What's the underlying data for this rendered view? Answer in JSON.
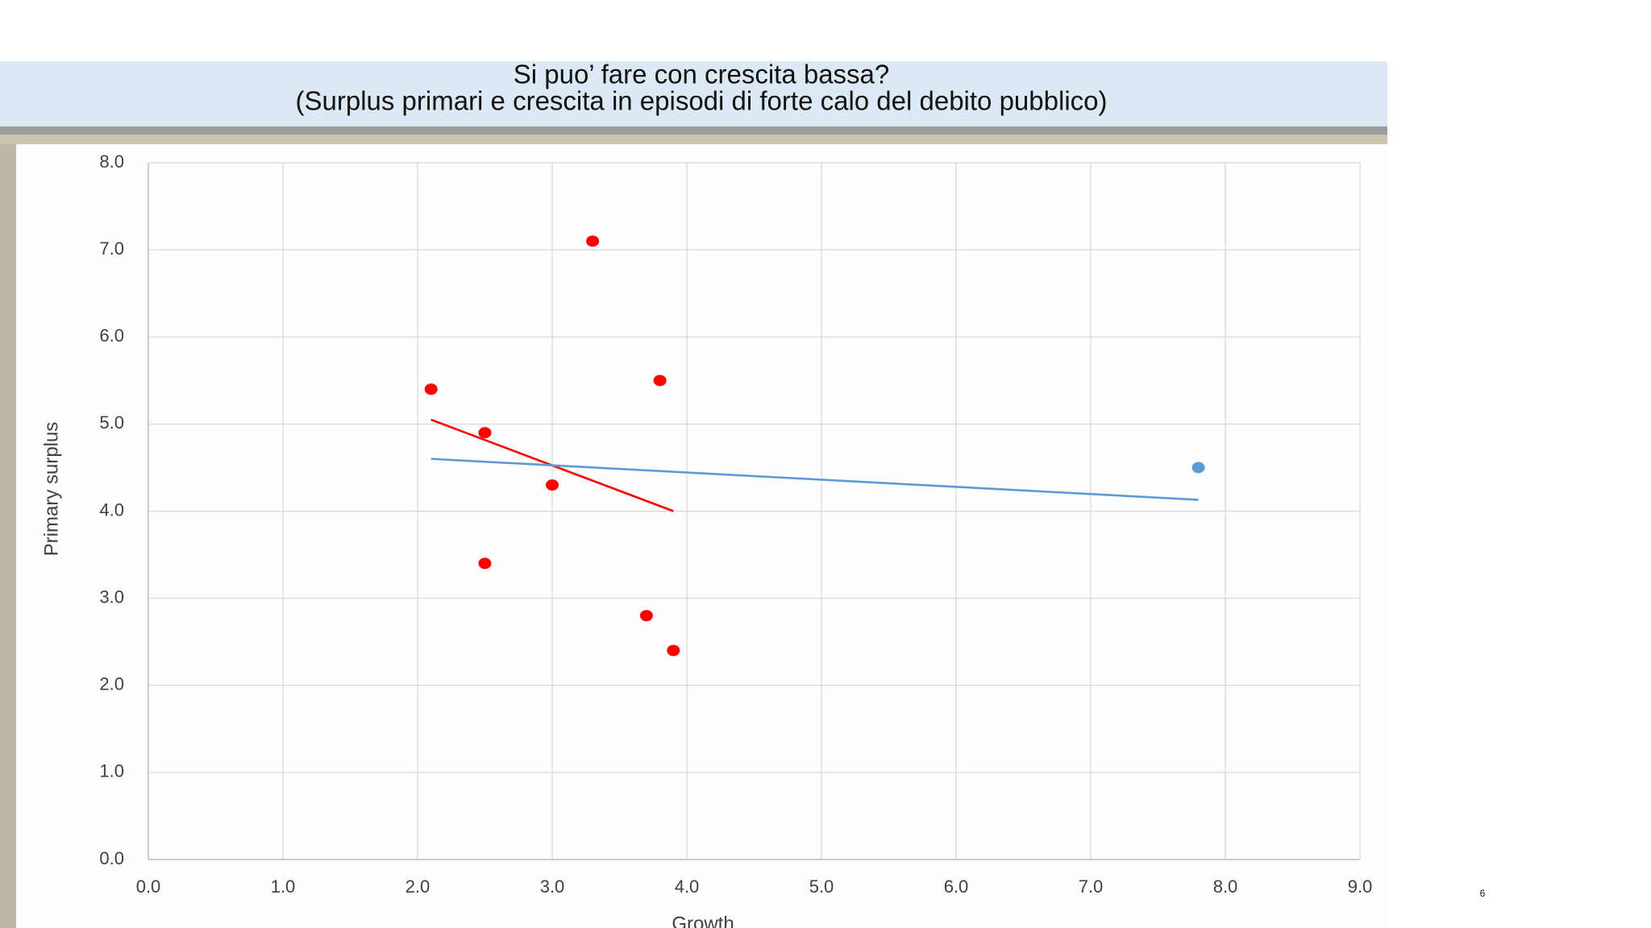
{
  "slide_title": [
    "Si puo’ fare con crescita bassa?",
    "(Surplus primari e crescita in episodi di forte calo del debito pubblico)"
  ],
  "page_number": "6",
  "chart_data": {
    "type": "scatter",
    "x_label": "Growth",
    "y_label": "Primary surplus",
    "xlim": [
      0,
      9
    ],
    "ylim": [
      0,
      8
    ],
    "xticks": [
      {
        "value": 0,
        "label": "0.0"
      },
      {
        "value": 1,
        "label": "1.0"
      },
      {
        "value": 2,
        "label": "2.0"
      },
      {
        "value": 3,
        "label": "3.0"
      },
      {
        "value": 4,
        "label": "4.0"
      },
      {
        "value": 5,
        "label": "5.0"
      },
      {
        "value": 6,
        "label": "6.0"
      },
      {
        "value": 7,
        "label": "7.0"
      },
      {
        "value": 8,
        "label": "8.0"
      },
      {
        "value": 9,
        "label": "9.0"
      }
    ],
    "yticks": [
      {
        "value": 0,
        "label": "0.0"
      },
      {
        "value": 1,
        "label": "1.0"
      },
      {
        "value": 2,
        "label": "2.0"
      },
      {
        "value": 3,
        "label": "3.0"
      },
      {
        "value": 4,
        "label": "4.0"
      },
      {
        "value": 5,
        "label": "5.0"
      },
      {
        "value": 6,
        "label": "6.0"
      },
      {
        "value": 7,
        "label": "7.0"
      },
      {
        "value": 8,
        "label": "8.0"
      }
    ],
    "grid": true,
    "series": [
      {
        "color": "#ff0000",
        "x": [
          2.1,
          2.5,
          2.5,
          3.0,
          3.3,
          3.7,
          3.8,
          3.9
        ],
        "values": [
          5.4,
          4.9,
          3.4,
          4.3,
          7.1,
          2.8,
          5.5,
          2.4
        ]
      },
      {
        "color": "#5b9bd5",
        "x": [
          7.8
        ],
        "values": [
          4.5
        ]
      }
    ],
    "trendlines": [
      {
        "color": "#ff0000",
        "x": [
          2.1,
          3.9
        ],
        "values": [
          5.05,
          4.0
        ]
      },
      {
        "color": "#5b9bd5",
        "x": [
          2.1,
          7.8
        ],
        "values": [
          4.6,
          4.13
        ]
      }
    ]
  }
}
